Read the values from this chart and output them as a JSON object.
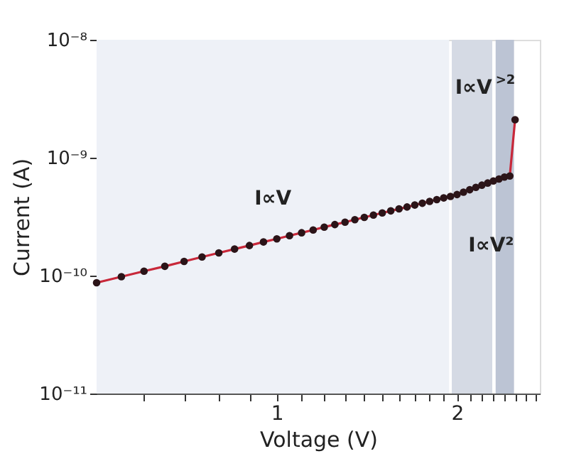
{
  "chart_data": {
    "type": "line",
    "xlabel": "Voltage (V)",
    "ylabel": "Current (A)",
    "log": "xy",
    "xlim": [
      0.5,
      2.75
    ],
    "xticks": [
      {
        "value": 0.6,
        "label": null
      },
      {
        "value": 0.7,
        "label": null
      },
      {
        "value": 0.8,
        "label": null
      },
      {
        "value": 0.9,
        "label": null
      },
      1,
      {
        "value": 1.1,
        "label": null
      },
      {
        "value": 1.2,
        "label": null
      },
      {
        "value": 1.3,
        "label": null
      },
      {
        "value": 1.4,
        "label": null
      },
      {
        "value": 1.5,
        "label": null
      },
      {
        "value": 1.6,
        "label": null
      },
      {
        "value": 1.7,
        "label": null
      },
      {
        "value": 1.8,
        "label": null
      },
      {
        "value": 1.9,
        "label": null
      },
      2,
      {
        "value": 2.1,
        "label": null
      },
      {
        "value": 2.2,
        "label": null
      },
      {
        "value": 2.3,
        "label": null
      },
      {
        "value": 2.4,
        "label": null
      },
      {
        "value": 2.5,
        "label": null
      },
      {
        "value": 2.6,
        "label": null
      },
      {
        "value": 2.7,
        "label": null
      }
    ],
    "ylim": [
      1e-11,
      1e-08
    ],
    "yticks": [
      {
        "value": 1e-11,
        "label": "10⁻¹¹"
      },
      {
        "value": 1e-10,
        "label": "10⁻¹⁰"
      },
      {
        "value": 1e-09,
        "label": "10⁻⁹"
      },
      {
        "value": 1e-08,
        "label": "10⁻⁸"
      }
    ],
    "grid": false,
    "marker": "circle",
    "line_style": "solid",
    "series": [
      {
        "color": "#c8283a",
        "x": [
          0.5,
          0.55,
          0.6,
          0.65,
          0.7,
          0.75,
          0.8,
          0.85,
          0.9,
          0.95,
          1.0,
          1.05,
          1.1,
          1.15,
          1.2,
          1.25,
          1.3,
          1.35,
          1.4,
          1.45,
          1.5,
          1.55,
          1.6,
          1.65,
          1.7,
          1.75,
          1.8,
          1.85,
          1.9,
          1.95,
          2.0,
          2.05,
          2.1,
          2.15,
          2.2,
          2.25,
          2.3,
          2.35,
          2.4,
          2.45,
          2.5
        ],
        "values": [
          8.7e-11,
          9.8e-11,
          1.09e-10,
          1.2e-10,
          1.32e-10,
          1.44e-10,
          1.56e-10,
          1.68e-10,
          1.8e-10,
          1.93e-10,
          2.05e-10,
          2.18e-10,
          2.31e-10,
          2.44e-10,
          2.58e-10,
          2.71e-10,
          2.84e-10,
          2.98e-10,
          3.12e-10,
          3.26e-10,
          3.4e-10,
          3.54e-10,
          3.68e-10,
          3.82e-10,
          3.97e-10,
          4.11e-10,
          4.26e-10,
          4.41e-10,
          4.56e-10,
          4.7e-10,
          4.87e-10,
          5.1e-10,
          5.35e-10,
          5.6e-10,
          5.85e-10,
          6.1e-10,
          6.35e-10,
          6.6e-10,
          6.85e-10,
          7e-10,
          2.1e-09
        ]
      }
    ],
    "bands": [
      {
        "axis": "x",
        "from": 0.5,
        "to": 1.94,
        "color": "#eef1f7"
      },
      {
        "axis": "x",
        "from": 1.96,
        "to": 2.29,
        "color": "#d5dae4"
      },
      {
        "axis": "x",
        "from": 2.32,
        "to": 2.49,
        "color": "#bcc4d4"
      }
    ],
    "annotations": [
      "I∝V",
      "I∝V²",
      "I∝V$^{>2}$"
    ]
  }
}
